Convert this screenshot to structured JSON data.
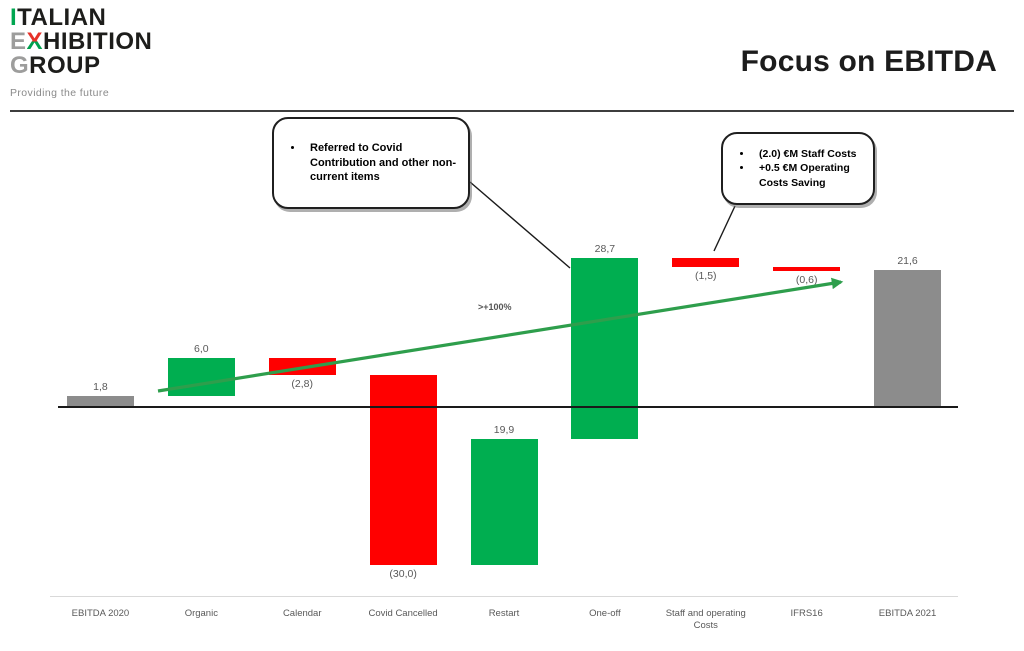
{
  "header": {
    "logo": {
      "l1a": "I",
      "l1b": "TALIAN",
      "l2a": "E",
      "l2b": "X",
      "l2c": "HIBITION",
      "l3a": "G",
      "l3b": "ROUP",
      "tagline": "Providing the future"
    },
    "title": "Focus on EBITDA"
  },
  "callouts": {
    "oneoff": {
      "items": [
        "Referred to Covid Contribution and other non-current items"
      ]
    },
    "staff": {
      "items": [
        "(2.0) €M Staff Costs",
        "+0.5 €M Operating Costs Saving"
      ]
    }
  },
  "chart_data": {
    "type": "bar",
    "subtype": "waterfall",
    "title": "Focus on EBITDA",
    "xlabel": "",
    "ylabel": "",
    "grid": false,
    "baseline_value": 0,
    "categories": [
      "EBITDA 2020",
      "Organic",
      "Calendar",
      "Covid Cancelled",
      "Restart",
      "One-off",
      "Staff and operating Costs",
      "IFRS16",
      "EBITDA 2021"
    ],
    "steps": [
      {
        "name": "EBITDA 2020",
        "value": 1.8,
        "display": "1,8",
        "start": 0,
        "end": 1.8,
        "color": "gray",
        "label_pos": "above"
      },
      {
        "name": "Organic",
        "value": 6.0,
        "display": "6,0",
        "start": 1.8,
        "end": 7.8,
        "color": "green",
        "label_pos": "above"
      },
      {
        "name": "Calendar",
        "value": -2.8,
        "display": "(2,8)",
        "start": 7.8,
        "end": 5.0,
        "color": "red",
        "label_pos": "below"
      },
      {
        "name": "Covid Cancelled",
        "value": -30.0,
        "display": "(30,0)",
        "start": 5.0,
        "end": -25.0,
        "color": "red",
        "label_pos": "below"
      },
      {
        "name": "Restart",
        "value": 19.9,
        "display": "19,9",
        "start": -25.0,
        "end": -5.1,
        "color": "green",
        "label_pos": "above"
      },
      {
        "name": "One-off",
        "value": 28.7,
        "display": "28,7",
        "start": -5.1,
        "end": 23.6,
        "color": "green",
        "label_pos": "above"
      },
      {
        "name": "Staff and operating Costs",
        "value": -1.5,
        "display": "(1,5)",
        "start": 23.6,
        "end": 22.1,
        "color": "red",
        "label_pos": "below"
      },
      {
        "name": "IFRS16",
        "value": -0.6,
        "display": "(0,6)",
        "start": 22.1,
        "end": 21.5,
        "color": "red",
        "label_pos": "below"
      },
      {
        "name": "EBITDA 2021",
        "value": 21.6,
        "display": "21,6",
        "start": 0,
        "end": 21.6,
        "color": "gray",
        "label_pos": "above"
      }
    ],
    "colors": {
      "increase": "#00ae50",
      "decrease": "#ff0000",
      "total": "#8c8c8c",
      "arrow": "#2e9e4c"
    },
    "annotations": [
      {
        "text": ">+100%",
        "about": "growth arrow from EBITDA 2020 to EBITDA 2021"
      }
    ]
  }
}
